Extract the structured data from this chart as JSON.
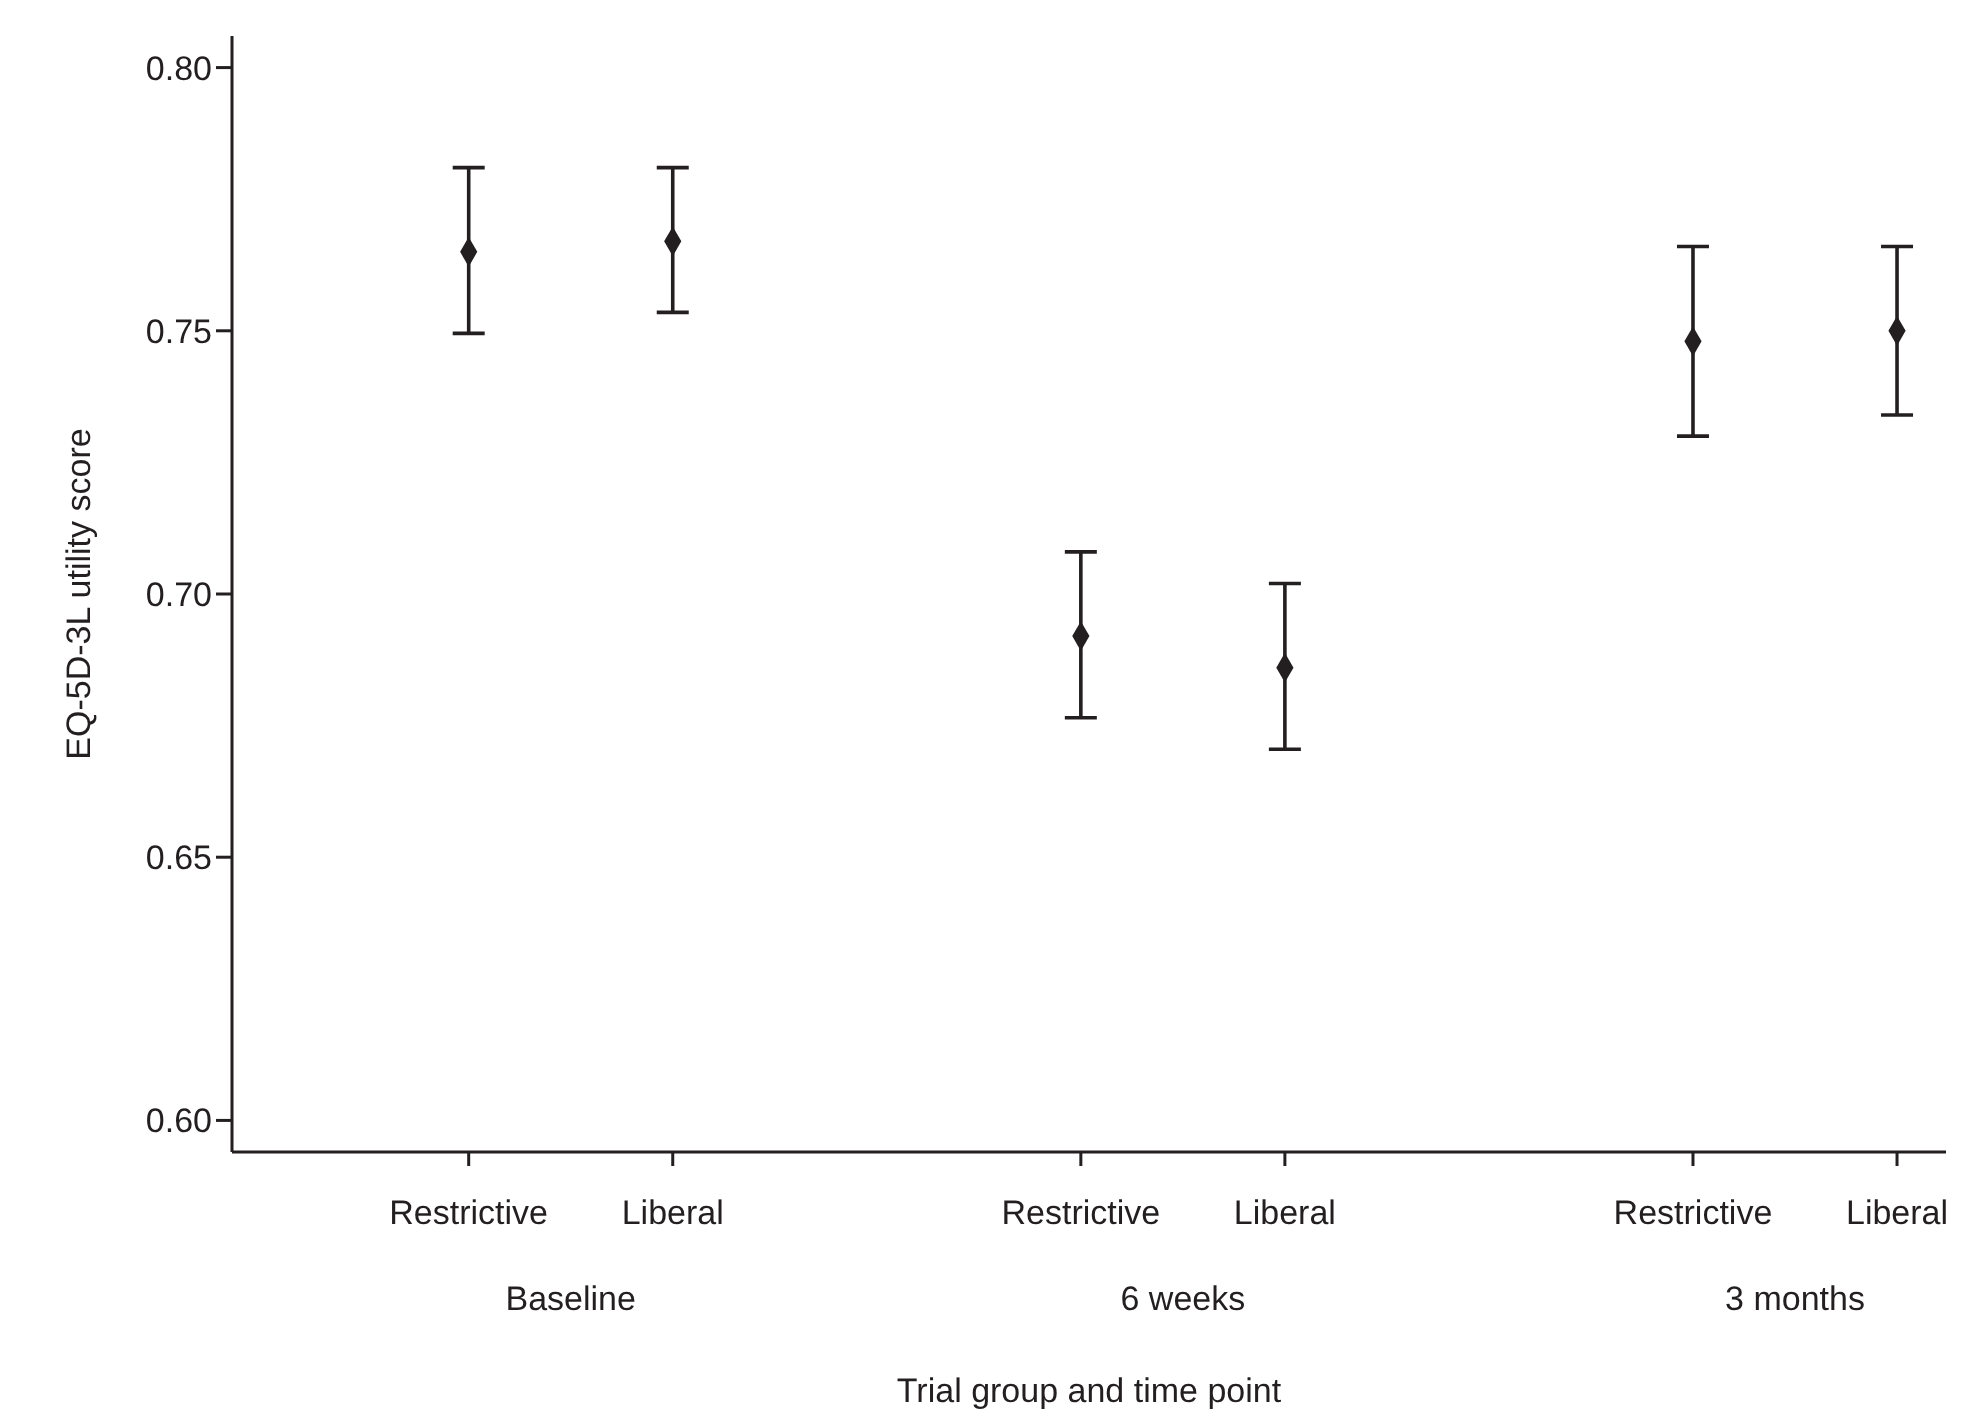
{
  "chart_data": {
    "type": "scatter",
    "xlabel": "Trial group and time point",
    "ylabel": "EQ-5D-3L utility score",
    "categories": [
      "Restrictive",
      "Liberal",
      null,
      "Restrictive",
      "Liberal",
      null,
      "Restrictive",
      "Liberal"
    ],
    "values": [
      0.765,
      0.767,
      null,
      0.692,
      0.686,
      null,
      0.748,
      0.75
    ],
    "errors": [
      [
        0.7495,
        0.781
      ],
      [
        0.7535,
        0.781
      ],
      null,
      [
        0.6765,
        0.708
      ],
      [
        0.6705,
        0.702
      ],
      null,
      [
        0.73,
        0.766
      ],
      [
        0.734,
        0.766
      ]
    ],
    "color": "#231f20",
    "marker": "diamond",
    "ylim": [
      0.594,
      0.806
    ],
    "yticks": [
      {
        "value": 0.6,
        "label": "0.60"
      },
      {
        "value": 0.65,
        "label": "0.65"
      },
      {
        "value": 0.7,
        "label": "0.70"
      },
      {
        "value": 0.75,
        "label": "0.75"
      },
      {
        "value": 0.8,
        "label": "0.80"
      }
    ],
    "annotations": [
      "Baseline",
      "6 weeks",
      "3 months"
    ]
  }
}
